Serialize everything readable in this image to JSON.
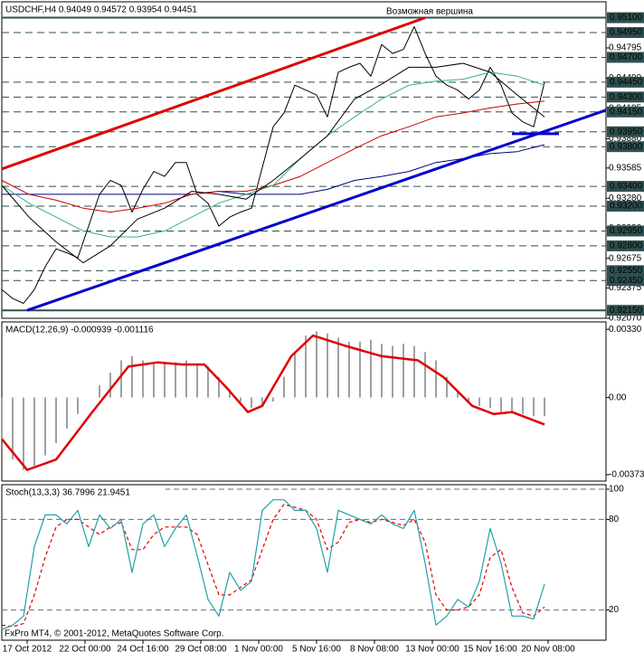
{
  "chart_data": [
    {
      "type": "line",
      "title": "USDCHF,H4 0.94049 0.94572 0.93954 0.94451",
      "annotation": "Возможная вершина",
      "xlim": [
        0,
        167
      ],
      "ylim": [
        0.9207,
        0.9526
      ],
      "yticks": [
        0.94795,
        {
          "value": 0.9449,
          "label": "0.94490"
        },
        0.94185,
        {
          "value": 0.9388,
          "label": "0.93880"
        },
        0.93585,
        {
          "value": 0.9328,
          "label": "0.93280"
        },
        {
          "value": 0.9298,
          "label": "0.92980"
        },
        0.92675,
        0.92375,
        {
          "value": 0.9207,
          "label": "0.92070"
        }
      ],
      "level_color": "#2f4f4f",
      "levels": [
        {
          "value": 0.951,
          "label": "0.95100"
        },
        {
          "value": 0.9495,
          "label": "0.94950"
        },
        {
          "value": 0.947,
          "label": "0.94700"
        },
        {
          "value": 0.9445,
          "label": "0.94450"
        },
        {
          "value": 0.943,
          "label": "0.94300"
        },
        {
          "value": 0.9415,
          "label": "0.94150"
        },
        {
          "value": 0.9395,
          "label": "0.93950"
        },
        {
          "value": 0.938,
          "label": "0.93800"
        },
        {
          "value": 0.934,
          "label": "0.93400"
        },
        {
          "value": 0.932,
          "label": "0.93200"
        },
        {
          "value": 0.9295,
          "label": "0.92950"
        },
        {
          "value": 0.928,
          "label": "0.92800"
        },
        {
          "value": 0.9255,
          "label": "0.92550"
        },
        {
          "value": 0.9245,
          "label": "0.92450"
        },
        {
          "value": 0.9215,
          "label": "0.92150"
        }
      ],
      "x": [
        0,
        3,
        6,
        9,
        12,
        15,
        18,
        21,
        24,
        27,
        30,
        33,
        36,
        39,
        42,
        45,
        48,
        51,
        54,
        57,
        60,
        63,
        66,
        69,
        72,
        75,
        78,
        81,
        84,
        87,
        90,
        93,
        96,
        99,
        102,
        105,
        108,
        111,
        114,
        117,
        120,
        123,
        126,
        129,
        132,
        135,
        138,
        141,
        144,
        147,
        150
      ],
      "series": [
        {
          "type": "line",
          "color": "#000000",
          "values": [
            0.9236,
            0.9227,
            0.9222,
            0.9236,
            0.9259,
            0.9277,
            0.9273,
            0.9268,
            0.93,
            0.9332,
            0.9346,
            0.9341,
            0.9314,
            0.9337,
            0.9355,
            0.935,
            0.9364,
            0.9364,
            0.9332,
            0.9323,
            0.93,
            0.9309,
            0.9314,
            0.9318,
            0.9359,
            0.94,
            0.9414,
            0.9442,
            0.9437,
            0.9432,
            0.941,
            0.9455,
            0.946,
            0.9464,
            0.9451,
            0.9483,
            0.9474,
            0.9478,
            0.9501,
            0.9474,
            0.9451,
            0.9442,
            0.9437,
            0.9428,
            0.9437,
            0.946,
            0.9442,
            0.9414,
            0.9405,
            0.94,
            0.9445
          ]
        },
        {
          "type": "line",
          "color": "#000080",
          "x": [
            0,
            7.5,
            15,
            22.5,
            30,
            37.5,
            45,
            52.5,
            60,
            67.5,
            75,
            82.5,
            90,
            97.5,
            105,
            112.5,
            120,
            127.5,
            135,
            142.5,
            150
          ],
          "values": [
            0.9332,
            0.9332,
            0.9332,
            0.9332,
            0.9332,
            0.9332,
            0.9332,
            0.9332,
            0.9335,
            0.9332,
            0.9332,
            0.9332,
            0.9337,
            0.9346,
            0.935,
            0.9355,
            0.9364,
            0.9368,
            0.9373,
            0.9375,
            0.9382
          ]
        },
        {
          "type": "line",
          "color": "#cc0000",
          "x": [
            0,
            7.5,
            15,
            22.5,
            30,
            37.5,
            45,
            52.5,
            60,
            67.5,
            75,
            82.5,
            90,
            97.5,
            105,
            112.5,
            120,
            127.5,
            135,
            142.5,
            150
          ],
          "values": [
            0.9346,
            0.9332,
            0.9326,
            0.9318,
            0.9314,
            0.9318,
            0.9323,
            0.9332,
            0.9335,
            0.9335,
            0.9341,
            0.935,
            0.9364,
            0.9378,
            0.9391,
            0.94,
            0.941,
            0.9414,
            0.9419,
            0.9423,
            0.9426
          ]
        },
        {
          "type": "line",
          "color": "#3cb371",
          "x": [
            0,
            7.5,
            15,
            22.5,
            30,
            37.5,
            45,
            52.5,
            60,
            67.5,
            75,
            82.5,
            90,
            97.5,
            105,
            112.5,
            120,
            127.5,
            135,
            142.5,
            150
          ],
          "values": [
            0.9341,
            0.9323,
            0.9309,
            0.9295,
            0.9289,
            0.9289,
            0.9295,
            0.9309,
            0.9323,
            0.9332,
            0.9341,
            0.9368,
            0.9391,
            0.941,
            0.9428,
            0.9442,
            0.9446,
            0.9448,
            0.9455,
            0.9451,
            0.9442
          ]
        },
        {
          "type": "line",
          "color": "#000000",
          "x": [
            0,
            7.5,
            15,
            22.5,
            30,
            37.5,
            45,
            52.5,
            60,
            67.5,
            75,
            82.5,
            90,
            97.5,
            105,
            112.5,
            120,
            127.5,
            135,
            142.5,
            150
          ],
          "values": [
            0.9341,
            0.9309,
            0.9284,
            0.9263,
            0.928,
            0.9307,
            0.9318,
            0.9335,
            0.9332,
            0.9327,
            0.9346,
            0.9368,
            0.9391,
            0.9428,
            0.9443,
            0.946,
            0.946,
            0.9464,
            0.9455,
            0.9432,
            0.941
          ]
        }
      ],
      "trendlines": [
        {
          "color": "#e00000",
          "x": [
            0,
            117
          ],
          "values": [
            0.93575,
            0.951
          ]
        },
        {
          "color": "#0000cc",
          "x": [
            7,
            167
          ],
          "values": [
            0.9215,
            0.94168
          ]
        },
        {
          "color": "#0000cc",
          "x": [
            141,
            154
          ],
          "values": [
            0.9393,
            0.9393
          ]
        }
      ]
    },
    {
      "type": "bar",
      "title": "MACD(12,26,9) -0.000939 -0.001116",
      "xlim": [
        0,
        167
      ],
      "ylim": [
        -0.00404,
        0.00366
      ],
      "yticks": [
        {
          "value": 0.0033,
          "label": "0.00330"
        },
        {
          "value": 0,
          "label": "0.00"
        },
        -0.00373
      ],
      "x": [
        0,
        3,
        6,
        9,
        12,
        15,
        18,
        21,
        24,
        27,
        30,
        33,
        36,
        39,
        42,
        45,
        48,
        51,
        54,
        57,
        60,
        63,
        66,
        69,
        72,
        75,
        78,
        81,
        84,
        87,
        90,
        93,
        96,
        99,
        102,
        105,
        108,
        111,
        114,
        117,
        120,
        123,
        126,
        129,
        132,
        135,
        138,
        141,
        144,
        147,
        150
      ],
      "series": [
        {
          "type": "histogram",
          "color": "#a0a0a0",
          "values": [
            -0.002,
            -0.003,
            -0.0035,
            -0.0033,
            -0.0028,
            -0.0022,
            -0.0015,
            -0.0008,
            0.0,
            0.0006,
            0.0012,
            0.0018,
            0.002,
            0.0018,
            0.0016,
            0.0017,
            0.0017,
            0.0018,
            0.0016,
            0.0015,
            0.001,
            0.0004,
            -0.0002,
            -0.0005,
            -0.0004,
            -0.0002,
            0.001,
            0.0022,
            0.003,
            0.0032,
            0.0031,
            0.0029,
            0.0027,
            0.0027,
            0.0028,
            0.0026,
            0.0025,
            0.0026,
            0.0025,
            0.0022,
            0.0018,
            0.001,
            0.0003,
            -0.0002,
            -0.0004,
            -0.0005,
            -0.0007,
            -0.0007,
            -0.0008,
            -0.0009,
            -0.0009
          ]
        },
        {
          "type": "line",
          "color": "#e00000",
          "x": [
            0,
            7,
            15,
            25,
            35,
            43,
            50,
            56,
            62,
            68,
            72,
            80,
            86,
            95,
            105,
            115,
            122,
            130,
            136,
            141,
            150
          ],
          "values": [
            -0.002,
            -0.0035,
            -0.003,
            -0.0007,
            0.0015,
            0.0017,
            0.0016,
            0.0016,
            0.0005,
            -0.0007,
            -0.0004,
            0.002,
            0.003,
            0.0025,
            0.002,
            0.0018,
            0.001,
            -0.0004,
            -0.0008,
            -0.0007,
            -0.0013
          ]
        }
      ]
    },
    {
      "type": "line",
      "title": "Stoch(13,3,3) 36.7996 21.9451",
      "footer": "FxPro MT4, © 2001-2012, MetaQuotes Software Corp.",
      "xlim": [
        0,
        167
      ],
      "ylim": [
        0,
        103
      ],
      "yticks": [
        100,
        80,
        20
      ],
      "grid": true,
      "xticks": [
        {
          "value": 7,
          "label": "17 Oct 2012"
        },
        {
          "value": 23,
          "label": "22 Oct 00:00"
        },
        {
          "value": 39,
          "label": "24 Oct 16:00"
        },
        {
          "value": 55,
          "label": "29 Oct 08:00"
        },
        {
          "value": 71,
          "label": "1 Nov 00:00"
        },
        {
          "value": 87,
          "label": "5 Nov 16:00"
        },
        {
          "value": 103,
          "label": "8 Nov 08:00"
        },
        {
          "value": 119,
          "label": "13 Nov 00:00"
        },
        {
          "value": 135,
          "label": "15 Nov 16:00"
        },
        {
          "value": 151,
          "label": "20 Nov 08:00"
        }
      ],
      "x": [
        0,
        3,
        6,
        9,
        12,
        15,
        18,
        21,
        24,
        27,
        30,
        33,
        36,
        39,
        42,
        45,
        48,
        51,
        54,
        57,
        60,
        63,
        66,
        69,
        72,
        75,
        78,
        81,
        84,
        87,
        90,
        93,
        96,
        99,
        102,
        105,
        108,
        111,
        114,
        117,
        120,
        123,
        126,
        129,
        132,
        135,
        138,
        141,
        144,
        147,
        150
      ],
      "series": [
        {
          "type": "line",
          "color": "#e00000",
          "dashed": true,
          "values": [
            10,
            9,
            11,
            30,
            55,
            75,
            80,
            80,
            75,
            70,
            75,
            78,
            60,
            60,
            70,
            75,
            75,
            75,
            70,
            50,
            30,
            30,
            35,
            40,
            60,
            80,
            90,
            88,
            86,
            80,
            60,
            65,
            78,
            80,
            78,
            80,
            78,
            76,
            80,
            65,
            30,
            20,
            20,
            22,
            30,
            55,
            60,
            35,
            18,
            16,
            22
          ]
        },
        {
          "type": "line",
          "color": "#20a0a8",
          "values": [
            7,
            10,
            16,
            62,
            83,
            83,
            77,
            86,
            62,
            83,
            74,
            80,
            45,
            77,
            83,
            62,
            74,
            83,
            56,
            27,
            16,
            45,
            33,
            39,
            86,
            93,
            93,
            86,
            86,
            74,
            45,
            86,
            83,
            80,
            77,
            83,
            77,
            74,
            86,
            51,
            10,
            16,
            27,
            22,
            39,
            74,
            51,
            16,
            16,
            14,
            37
          ]
        }
      ]
    }
  ]
}
